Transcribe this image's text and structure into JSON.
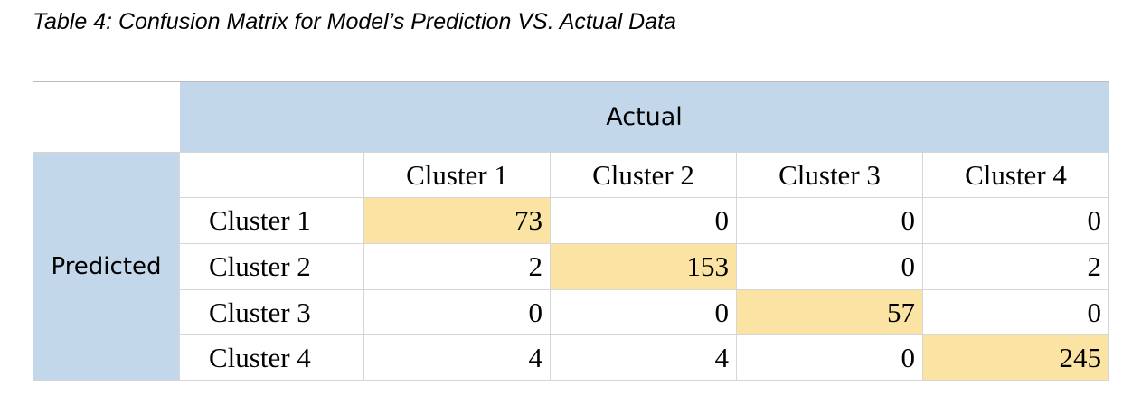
{
  "caption": "Table 4: Confusion Matrix for Model’s Prediction VS. Actual Data",
  "header": {
    "actual_label": "Actual",
    "predicted_label": "Predicted"
  },
  "columns": [
    "Cluster 1",
    "Cluster 2",
    "Cluster 3",
    "Cluster 4"
  ],
  "rows": [
    {
      "label": "Cluster 1",
      "values": [
        "73",
        "0",
        "0",
        "0"
      ]
    },
    {
      "label": "Cluster 2",
      "values": [
        "2",
        "153",
        "0",
        "2"
      ]
    },
    {
      "label": "Cluster 3",
      "values": [
        "0",
        "0",
        "57",
        "0"
      ]
    },
    {
      "label": "Cluster 4",
      "values": [
        "4",
        "4",
        "0",
        "245"
      ]
    }
  ],
  "colors": {
    "header_fill": "#c3d7ea",
    "diagonal_fill": "#fbe4a3",
    "grid": "#d6d6d6"
  }
}
